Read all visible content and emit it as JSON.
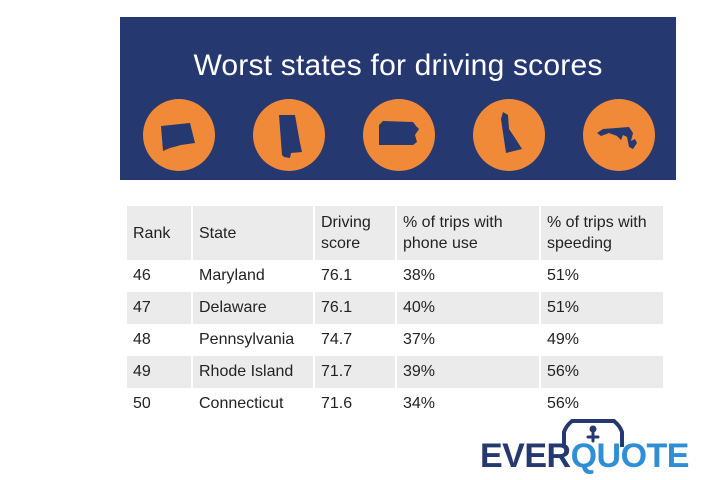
{
  "banner": {
    "title": "Worst states for driving scores",
    "icons": [
      "connecticut-state-icon",
      "alabama-state-icon",
      "pennsylvania-state-icon",
      "delaware-state-icon",
      "maryland-state-icon"
    ]
  },
  "table": {
    "headers": [
      "Rank",
      "State",
      "Driving score",
      "% of trips with phone use",
      "% of trips with speeding"
    ],
    "rows": [
      [
        "46",
        "Maryland",
        "76.1",
        "38%",
        "51%"
      ],
      [
        "47",
        "Delaware",
        "76.1",
        "40%",
        "51%"
      ],
      [
        "48",
        "Pennsylvania",
        "74.7",
        "37%",
        "49%"
      ],
      [
        "49",
        "Rhode Island",
        "71.7",
        "39%",
        "56%"
      ],
      [
        "50",
        "Connecticut",
        "71.6",
        "34%",
        "56%"
      ]
    ]
  },
  "logo": {
    "part1": "EVER",
    "part2": "QUOTE"
  },
  "colors": {
    "banner": "#263870",
    "circle": "#f08a38",
    "state_shape": "#263870",
    "logo_dark": "#263870",
    "logo_light": "#2f8fd6"
  }
}
